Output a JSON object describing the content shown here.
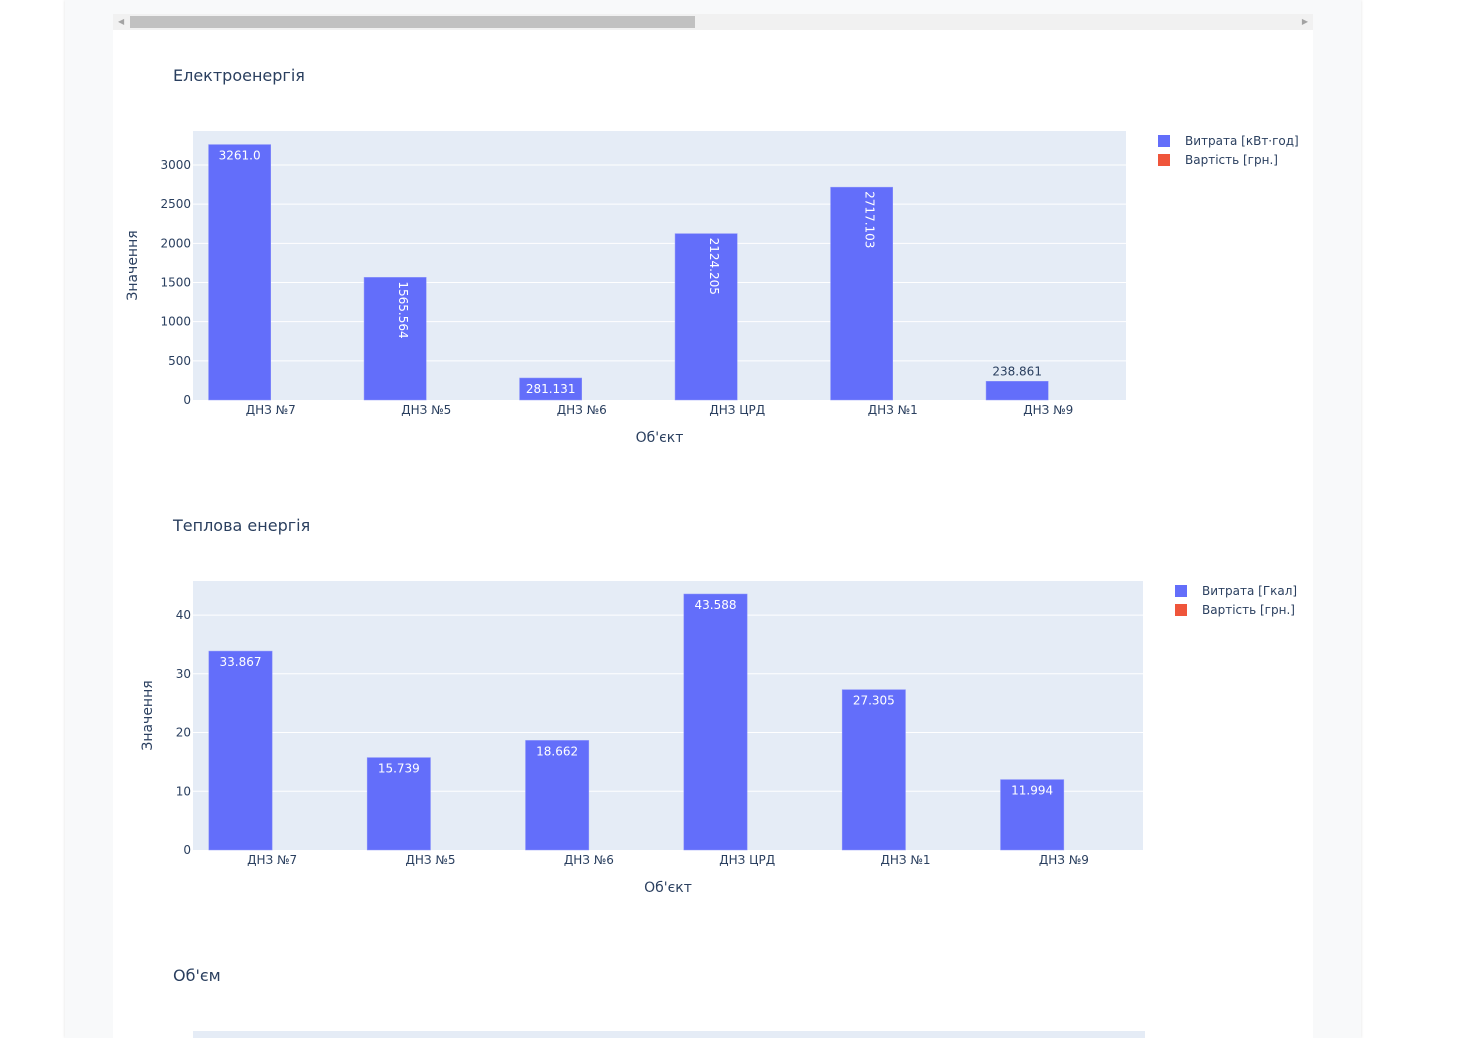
{
  "chart_data": [
    {
      "type": "bar",
      "title": "Електроенергія",
      "xlabel": "Об'єкт",
      "ylabel": "Значення",
      "categories": [
        "ДНЗ №7",
        "ДНЗ №5",
        "ДНЗ №6",
        "ДНЗ ЦРД",
        "ДНЗ №1",
        "ДНЗ №9"
      ],
      "series": [
        {
          "name": "Витрата [кВт·год]",
          "color": "#636efa",
          "values": [
            3261.0,
            1565.564,
            281.131,
            2124.205,
            2717.103,
            238.861
          ],
          "labels": [
            "3261.0",
            "1565.564",
            "281.131",
            "2124.205",
            "2717.103",
            "238.861"
          ]
        },
        {
          "name": "Вартість [грн.]",
          "color": "#ef553b",
          "values": [
            0,
            0,
            0,
            0,
            0,
            0
          ]
        }
      ],
      "ylim": [
        0,
        3434
      ],
      "yticks": [
        0,
        500,
        1000,
        1500,
        2000,
        2500,
        3000
      ],
      "grid": true,
      "legend": "top-right"
    },
    {
      "type": "bar",
      "title": "Теплова енергія",
      "xlabel": "Об'єкт",
      "ylabel": "Значення",
      "categories": [
        "ДНЗ №7",
        "ДНЗ №5",
        "ДНЗ №6",
        "ДНЗ ЦРД",
        "ДНЗ №1",
        "ДНЗ №9"
      ],
      "series": [
        {
          "name": "Витрата [Гкал]",
          "color": "#636efa",
          "values": [
            33.867,
            15.739,
            18.662,
            43.588,
            27.305,
            11.994
          ],
          "labels": [
            "33.867",
            "15.739",
            "18.662",
            "43.588",
            "27.305",
            "11.994"
          ]
        },
        {
          "name": "Вартість [грн.]",
          "color": "#ef553b",
          "values": [
            0,
            0,
            0,
            0,
            0,
            0
          ]
        }
      ],
      "ylim": [
        0,
        45.8
      ],
      "yticks": [
        0,
        10,
        20,
        30,
        40
      ],
      "grid": true,
      "legend": "top-right"
    },
    {
      "type": "bar",
      "title": "Об'єм"
    }
  ]
}
